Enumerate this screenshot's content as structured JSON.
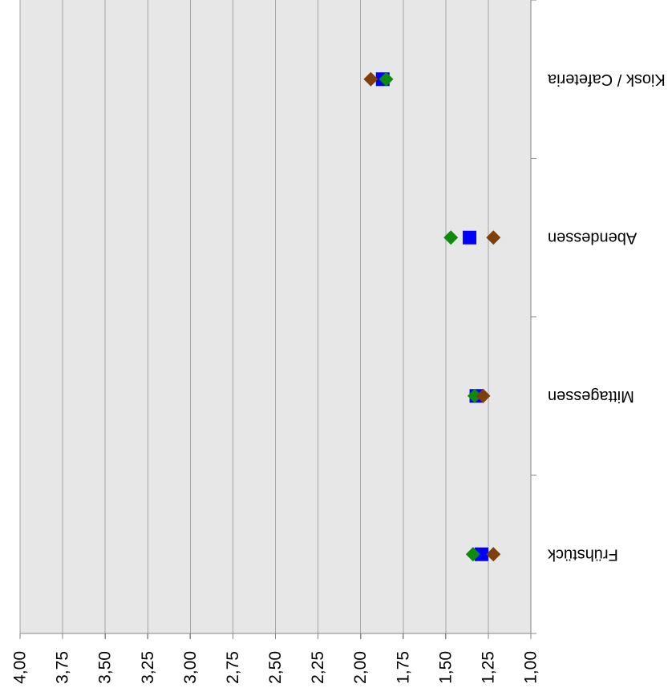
{
  "chart_data": {
    "type": "scatter",
    "categories": [
      "Frühstück",
      "Mittagessen",
      "Abendessen",
      "Kiosk / Cafeteria"
    ],
    "ylim": [
      1,
      4
    ],
    "ytick_values": [
      1,
      1.25,
      1.5,
      1.75,
      2,
      2.25,
      2.5,
      2.75,
      3,
      3.25,
      3.5,
      3.75,
      4
    ],
    "ytick_labels": [
      "1,00",
      "1,25",
      "1,50",
      "1,75",
      "2,00",
      "2,25",
      "2,50",
      "2,75",
      "3,00",
      "3,25",
      "3,50",
      "3,75",
      "4,00"
    ],
    "grid": true,
    "plot_background": "#e7e7e7",
    "series": [
      {
        "color": "#0000ff",
        "marker": "square",
        "values": [
          1.29,
          1.32,
          1.36,
          1.87
        ]
      },
      {
        "color": "#0e8a0e",
        "marker": "diamond",
        "values": [
          1.34,
          1.33,
          1.47,
          1.85
        ]
      },
      {
        "color": "#7f3f0a",
        "marker": "diamond",
        "values": [
          1.22,
          1.28,
          1.22,
          1.94
        ]
      }
    ]
  }
}
